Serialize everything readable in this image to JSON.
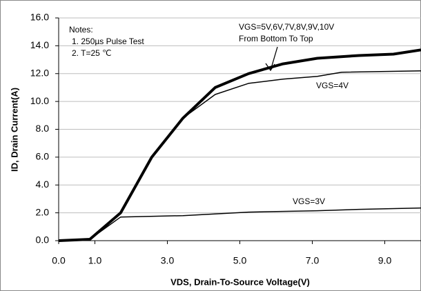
{
  "chart_data": {
    "type": "line",
    "x_label": "VDS,  Drain-To-Source Voltage(V)",
    "y_label": "ID,  Drain Current(A)",
    "notes": [
      "Notes:",
      "1. 250µs  Pulse Test",
      "2. T=25 ℃"
    ],
    "annotation": "From Bottom To Top",
    "xlim": [
      0,
      10
    ],
    "ylim": [
      0,
      16
    ],
    "xticks": [
      {
        "value": 0,
        "label": "0.0"
      },
      {
        "value": 1,
        "label": "1.0"
      },
      {
        "value": 3,
        "label": "3.0"
      },
      {
        "value": 5,
        "label": "5.0"
      },
      {
        "value": 7,
        "label": "7.0"
      },
      {
        "value": 9,
        "label": "9.0"
      }
    ],
    "yticks": [
      {
        "value": 0,
        "label": "0.0"
      },
      {
        "value": 2,
        "label": "2.0"
      },
      {
        "value": 4,
        "label": "4.0"
      },
      {
        "value": 6,
        "label": "6.0"
      },
      {
        "value": 8,
        "label": "8.0"
      },
      {
        "value": 10,
        "label": "10.0"
      },
      {
        "value": 12,
        "label": "12.0"
      },
      {
        "value": 14,
        "label": "14.0"
      },
      {
        "value": 16,
        "label": "16.0"
      }
    ],
    "grid": true,
    "series": [
      {
        "name": "VGS=5V,6V,7V,8V,9V,10V",
        "color": "#000000",
        "width": 4,
        "x": [
          0,
          0.86,
          1.71,
          2.57,
          3.43,
          4.32,
          5.24,
          6.19,
          7.14,
          8.29,
          9.24,
          10
        ],
        "values": [
          0,
          0.1,
          2,
          6,
          8.8,
          11,
          12,
          12.7,
          13.1,
          13.3,
          13.4,
          13.7
        ]
      },
      {
        "name": "VGS=4V",
        "color": "#000000",
        "width": 1.5,
        "x": [
          0,
          0.86,
          1.71,
          2.57,
          3.43,
          4.32,
          5.24,
          6.19,
          7.14,
          7.81,
          10
        ],
        "values": [
          0,
          0.1,
          2,
          6,
          8.8,
          10.5,
          11.3,
          11.6,
          11.8,
          12.1,
          12.2
        ]
      },
      {
        "name": "VGS=3V",
        "color": "#000000",
        "width": 1.5,
        "x": [
          0,
          0.86,
          1.71,
          3.43,
          5.24,
          7.14,
          8.29,
          10
        ],
        "values": [
          0,
          0.1,
          1.7,
          1.8,
          2.05,
          2.15,
          2.25,
          2.35
        ]
      }
    ]
  }
}
